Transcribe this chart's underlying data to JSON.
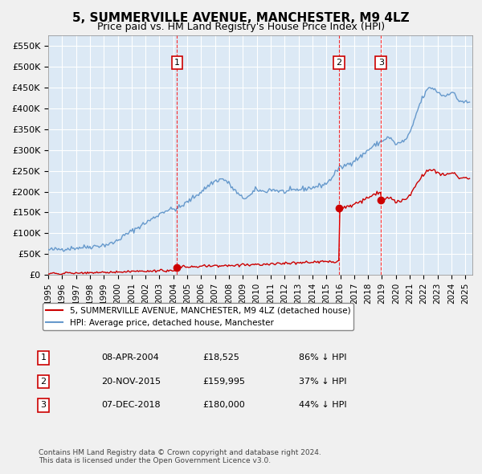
{
  "title": "5, SUMMERVILLE AVENUE, MANCHESTER, M9 4LZ",
  "subtitle": "Price paid vs. HM Land Registry's House Price Index (HPI)",
  "title_fontsize": 11,
  "subtitle_fontsize": 9,
  "background_color": "#dce9f5",
  "plot_bg_color": "#dce9f5",
  "grid_color": "#ffffff",
  "hpi_color": "#6699cc",
  "price_color": "#cc0000",
  "purchase_color": "#cc0000",
  "ylim": [
    0,
    575000
  ],
  "xlim_start": 1995.0,
  "xlim_end": 2025.5,
  "yticks": [
    0,
    50000,
    100000,
    150000,
    200000,
    250000,
    300000,
    350000,
    400000,
    450000,
    500000,
    550000
  ],
  "ytick_labels": [
    "£0",
    "£50K",
    "£100K",
    "£150K",
    "£200K",
    "£250K",
    "£300K",
    "£350K",
    "£400K",
    "£450K",
    "£500K",
    "£550K"
  ],
  "xticks": [
    1995,
    1996,
    1997,
    1998,
    1999,
    2000,
    2001,
    2002,
    2003,
    2004,
    2005,
    2006,
    2007,
    2008,
    2009,
    2010,
    2011,
    2012,
    2013,
    2014,
    2015,
    2016,
    2017,
    2018,
    2019,
    2020,
    2021,
    2022,
    2023,
    2024,
    2025
  ],
  "legend_items": [
    {
      "label": "5, SUMMERVILLE AVENUE, MANCHESTER, M9 4LZ (detached house)",
      "color": "#cc0000",
      "lw": 1.5
    },
    {
      "label": "HPI: Average price, detached house, Manchester",
      "color": "#6699cc",
      "lw": 1.5
    }
  ],
  "purchases": [
    {
      "num": 1,
      "date_decimal": 2004.27,
      "price": 18525,
      "label": "08-APR-2004",
      "price_str": "£18,525",
      "hpi_str": "86% ↓ HPI"
    },
    {
      "num": 2,
      "date_decimal": 2015.9,
      "price": 159995,
      "label": "20-NOV-2015",
      "price_str": "£159,995",
      "hpi_str": "37% ↓ HPI"
    },
    {
      "num": 3,
      "date_decimal": 2018.93,
      "price": 180000,
      "label": "07-DEC-2018",
      "price_str": "£180,000",
      "hpi_str": "44% ↓ HPI"
    }
  ],
  "footer": "Contains HM Land Registry data © Crown copyright and database right 2024.\nThis data is licensed under the Open Government Licence v3.0."
}
